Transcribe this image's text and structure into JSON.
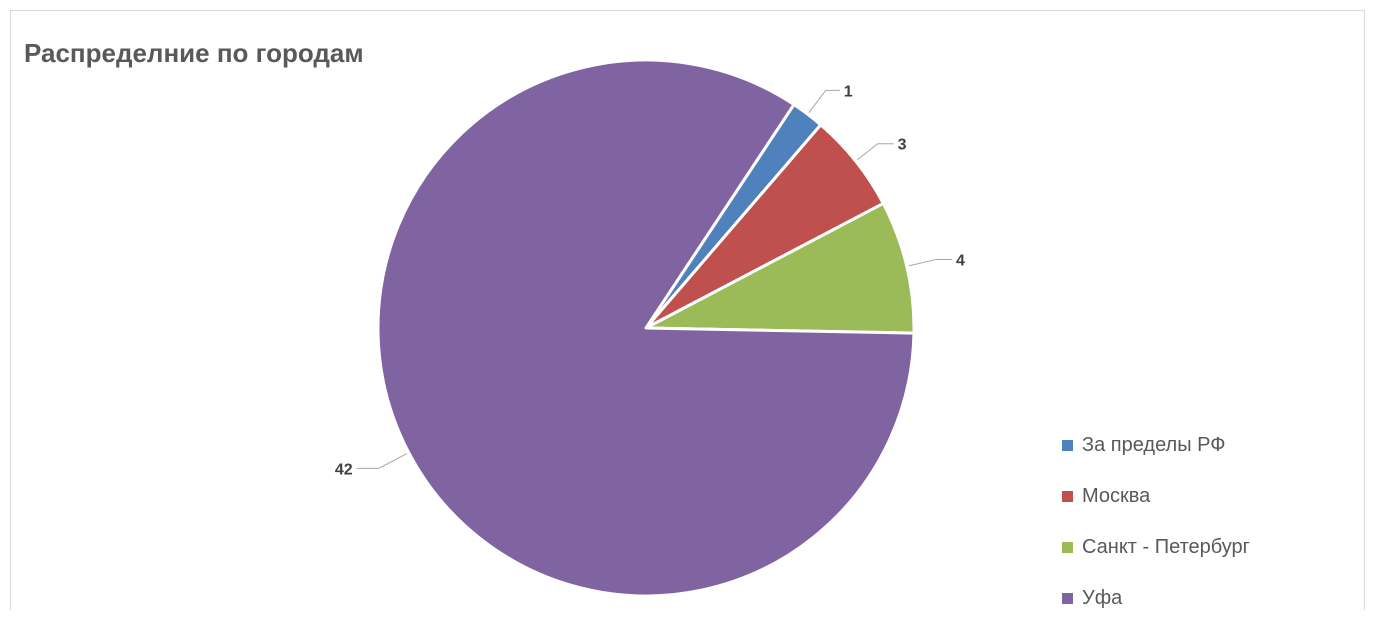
{
  "chart_data": {
    "type": "pie",
    "title": "Распределние по городам",
    "categories": [
      "За пределы РФ",
      "Москва",
      "Санкт - Петербург",
      "Уфа"
    ],
    "values": [
      1,
      3,
      4,
      42
    ],
    "colors": [
      "#4f81bd",
      "#c0504d",
      "#9bbb59",
      "#8064a2"
    ],
    "data_labels": [
      "1",
      "3",
      "4",
      "42"
    ],
    "legend_position": "right"
  }
}
